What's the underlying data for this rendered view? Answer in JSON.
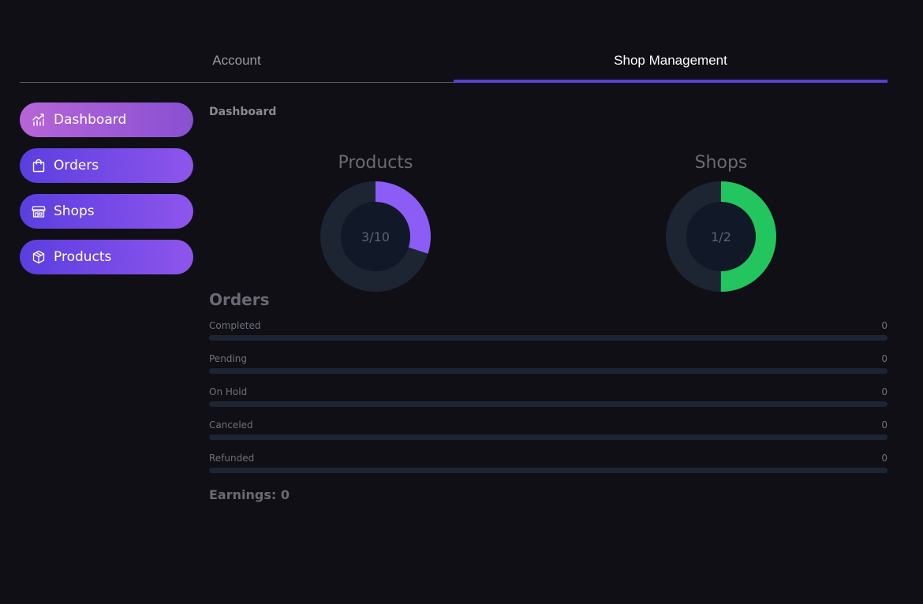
{
  "tabs": [
    {
      "label": "Account",
      "active": false
    },
    {
      "label": "Shop Management",
      "active": true
    }
  ],
  "sidebar": {
    "items": [
      {
        "label": "Dashboard",
        "icon": "chart-icon",
        "active": true
      },
      {
        "label": "Orders",
        "icon": "shopping-bag-icon",
        "active": false
      },
      {
        "label": "Shops",
        "icon": "store-icon",
        "active": false
      },
      {
        "label": "Products",
        "icon": "box-icon",
        "active": false
      }
    ]
  },
  "main": {
    "section_title": "Dashboard",
    "products": {
      "title": "Products",
      "label": "3/10",
      "value": 3,
      "total": 10,
      "color": "#8b5cf6"
    },
    "shops": {
      "title": "Shops",
      "label": "1/2",
      "value": 1,
      "total": 2,
      "color": "#22c55e"
    },
    "orders_title": "Orders",
    "orders": [
      {
        "label": "Completed",
        "value": "0"
      },
      {
        "label": "Pending",
        "value": "0"
      },
      {
        "label": "On Hold",
        "value": "0"
      },
      {
        "label": "Canceled",
        "value": "0"
      },
      {
        "label": "Refunded",
        "value": "0"
      }
    ],
    "earnings": "Earnings: 0"
  },
  "colors": {
    "background": "#0f0f15",
    "track": "#1d2533",
    "donut_inner": "#111827",
    "accent": "#5a3fd1"
  }
}
